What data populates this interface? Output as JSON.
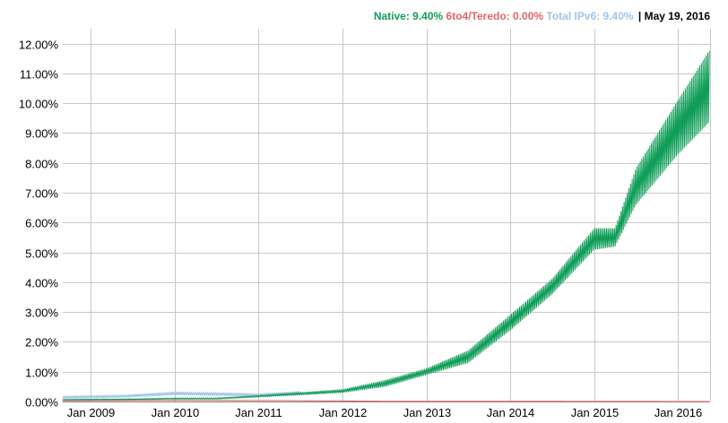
{
  "legend": {
    "native": {
      "label": "Native:",
      "value": "9.40%",
      "color": "#0f9d58"
    },
    "teredo": {
      "label": "6to4/Teredo:",
      "value": "0.00%",
      "color": "#e06666"
    },
    "total": {
      "label": "Total IPv6:",
      "value": "9.40%",
      "color": "#9fc5e8"
    },
    "date": "May 19, 2016"
  },
  "chart_data": {
    "type": "line",
    "x_ticks": [
      "Jan 2009",
      "Jan 2010",
      "Jan 2011",
      "Jan 2012",
      "Jan 2013",
      "Jan 2014",
      "Jan 2015",
      "Jan 2016"
    ],
    "y_ticks": [
      "0.00%",
      "1.00%",
      "2.00%",
      "3.00%",
      "4.00%",
      "5.00%",
      "6.00%",
      "7.00%",
      "8.00%",
      "9.00%",
      "10.00%",
      "11.00%",
      "12.00%"
    ],
    "xlim": [
      "2008-09-01",
      "2016-05-19"
    ],
    "ylim": [
      0,
      12.5
    ],
    "grid": true,
    "series": [
      {
        "name": "Native",
        "color": "#0f9d58",
        "x": [
          "2008-09-01",
          "2009-01-01",
          "2009-07-01",
          "2010-01-01",
          "2010-07-01",
          "2011-01-01",
          "2011-07-01",
          "2012-01-01",
          "2012-07-01",
          "2013-01-01",
          "2013-07-01",
          "2014-01-01",
          "2014-07-01",
          "2015-01-01",
          "2015-04-01",
          "2015-07-01",
          "2016-01-01",
          "2016-05-19"
        ],
        "low": [
          0.05,
          0.05,
          0.06,
          0.08,
          0.08,
          0.15,
          0.22,
          0.3,
          0.5,
          0.9,
          1.3,
          2.4,
          3.6,
          5.1,
          5.2,
          6.6,
          8.3,
          9.4
        ],
        "high": [
          0.07,
          0.08,
          0.09,
          0.12,
          0.12,
          0.2,
          0.3,
          0.4,
          0.7,
          1.1,
          1.7,
          2.9,
          4.1,
          5.8,
          5.8,
          7.8,
          10.1,
          11.8
        ]
      },
      {
        "name": "Total IPv6",
        "color": "#9fc5e8",
        "x": [
          "2008-09-01",
          "2009-06-01",
          "2010-01-01",
          "2010-07-01",
          "2011-01-01",
          "2011-07-01"
        ],
        "low": [
          0.1,
          0.14,
          0.22,
          0.2,
          0.18,
          0.28
        ],
        "high": [
          0.18,
          0.22,
          0.32,
          0.3,
          0.26,
          0.34
        ]
      },
      {
        "name": "6to4/Teredo",
        "color": "#e06666",
        "x": [
          "2008-09-01",
          "2010-01-01",
          "2011-07-01",
          "2012-07-01",
          "2016-05-19"
        ],
        "low": [
          0.02,
          0.03,
          0.02,
          0.01,
          0.0
        ],
        "high": [
          0.04,
          0.05,
          0.03,
          0.01,
          0.0
        ]
      }
    ]
  }
}
